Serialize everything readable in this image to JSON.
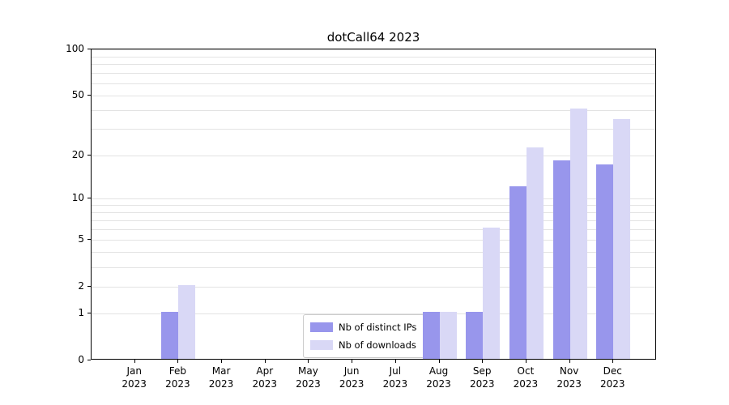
{
  "title": "dotCall64 2023",
  "chart_data": {
    "type": "bar",
    "title": "dotCall64 2023",
    "categories": [
      "Jan",
      "Feb",
      "Mar",
      "Apr",
      "May",
      "Jun",
      "Jul",
      "Aug",
      "Sep",
      "Oct",
      "Nov",
      "Dec"
    ],
    "year_label": "2023",
    "series": [
      {
        "name": "Nb of distinct IPs",
        "color": "#9896ec",
        "values": [
          0,
          1,
          0,
          0,
          0,
          0,
          0,
          1,
          1,
          12,
          18,
          17
        ]
      },
      {
        "name": "Nb of downloads",
        "color": "#d9d8f6",
        "values": [
          0,
          2,
          0,
          0,
          0,
          0,
          0,
          1,
          6,
          22,
          40,
          34
        ]
      }
    ],
    "yscale": "log1p",
    "ylim": [
      0,
      100
    ],
    "y_ticks": [
      0,
      1,
      2,
      5,
      10,
      20,
      50,
      100
    ],
    "y_gridlines": [
      1,
      2,
      3,
      4,
      5,
      6,
      7,
      8,
      9,
      10,
      20,
      30,
      40,
      50,
      60,
      70,
      80,
      90,
      100
    ],
    "grid": true,
    "legend": {
      "position": "lower center"
    }
  }
}
